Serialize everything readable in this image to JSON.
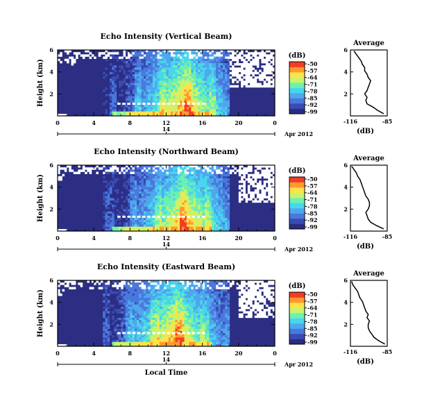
{
  "chart_data": [
    {
      "type": "heatmap",
      "title": "Echo Intensity (Vertical Beam)",
      "ylabel": "Height (km)",
      "xticks": [
        "0",
        "4",
        "8",
        "12",
        "16",
        "20",
        "0"
      ],
      "yticks": [
        "6",
        "4",
        "2"
      ],
      "date_day": "14",
      "date_label": "Apr 2012",
      "xlim": [
        0,
        24
      ],
      "ylim": [
        0,
        6
      ],
      "colorbar": {
        "unit": "(dB)",
        "ticks": [
          "-50",
          "-57",
          "-64",
          "-71",
          "-78",
          "-85",
          "-92",
          "-99"
        ],
        "range": [
          -99,
          -50
        ],
        "colors": [
          "#2b2d7e",
          "#3a4bb5",
          "#4a78dc",
          "#4fa7ee",
          "#48d6ec",
          "#6ff0b0",
          "#c8f46a",
          "#ffe24a",
          "#ff9a2c",
          "#f23d24"
        ]
      },
      "field": {
        "dense_start_h": 2,
        "peak_center_h": 14,
        "bright_band_km": 1.2,
        "sparse_after_h": 19
      },
      "profile": {
        "title": "Average",
        "xlabel": "(dB)",
        "xticks": [
          "-116",
          "-85"
        ],
        "yticks": [
          "6",
          "4",
          "2"
        ],
        "xlim": [
          -116,
          -85
        ],
        "ylim": [
          0,
          6
        ],
        "heights": [
          0.2,
          0.5,
          0.8,
          1.1,
          1.4,
          1.7,
          2.0,
          2.3,
          2.6,
          2.9,
          3.2,
          3.5,
          3.8,
          4.1,
          4.4,
          4.7,
          5.0,
          5.3,
          5.6,
          5.9
        ],
        "values": [
          -88,
          -93,
          -97,
          -102,
          -103,
          -102,
          -104,
          -102,
          -101,
          -100,
          -99,
          -101,
          -102,
          -104,
          -104,
          -106,
          -107,
          -109,
          -111,
          -113
        ]
      }
    },
    {
      "type": "heatmap",
      "title": "Echo Intensity (Northward Beam)",
      "ylabel": "Height (km)",
      "xticks": [
        "0",
        "4",
        "8",
        "12",
        "16",
        "20",
        "0"
      ],
      "yticks": [
        "6",
        "4",
        "2"
      ],
      "date_day": "14",
      "date_label": "Apr 2012",
      "xlim": [
        0,
        24
      ],
      "ylim": [
        0,
        6
      ],
      "colorbar": {
        "unit": "(dB)",
        "ticks": [
          "-50",
          "-57",
          "-64",
          "-71",
          "-78",
          "-85",
          "-92",
          "-99"
        ],
        "range": [
          -99,
          -50
        ],
        "colors": [
          "#2b2d7e",
          "#3a4bb5",
          "#4a78dc",
          "#4fa7ee",
          "#48d6ec",
          "#6ff0b0",
          "#c8f46a",
          "#ffe24a",
          "#ff9a2c",
          "#f23d24"
        ]
      },
      "field": {
        "dense_start_h": 1,
        "peak_center_h": 14,
        "bright_band_km": 1.4,
        "sparse_after_h": 20
      },
      "profile": {
        "title": "Average",
        "xlabel": "(dB)",
        "xticks": [
          "-116",
          "-85"
        ],
        "yticks": [
          "6",
          "4",
          "2"
        ],
        "xlim": [
          -116,
          -85
        ],
        "ylim": [
          0,
          6
        ],
        "heights": [
          0.2,
          0.5,
          0.8,
          1.1,
          1.4,
          1.7,
          2.0,
          2.3,
          2.6,
          2.9,
          3.2,
          3.5,
          3.8,
          4.1,
          4.4,
          4.7,
          5.0,
          5.3,
          5.6,
          5.9
        ],
        "values": [
          -88,
          -94,
          -99,
          -101,
          -102,
          -103,
          -101,
          -100,
          -100,
          -101,
          -103,
          -104,
          -105,
          -106,
          -107,
          -108,
          -110,
          -111,
          -113,
          -115
        ]
      }
    },
    {
      "type": "heatmap",
      "title": "Echo Intensity (Eastward Beam)",
      "ylabel": "Height (km)",
      "xlabel": "Local Time",
      "xticks": [
        "0",
        "4",
        "8",
        "12",
        "16",
        "20",
        "0"
      ],
      "yticks": [
        "6",
        "4",
        "2"
      ],
      "date_day": "14",
      "date_label": "Apr 2012",
      "xlim": [
        0,
        24
      ],
      "ylim": [
        0,
        6
      ],
      "colorbar": {
        "unit": "(dB)",
        "ticks": [
          "-50",
          "-57",
          "-64",
          "-71",
          "-78",
          "-85",
          "-92",
          "-99"
        ],
        "range": [
          -99,
          -50
        ],
        "colors": [
          "#2b2d7e",
          "#3a4bb5",
          "#4a78dc",
          "#4fa7ee",
          "#48d6ec",
          "#6ff0b0",
          "#c8f46a",
          "#ffe24a",
          "#ff9a2c",
          "#f23d24"
        ]
      },
      "field": {
        "dense_start_h": 1,
        "peak_center_h": 13,
        "bright_band_km": 1.3,
        "sparse_after_h": 20
      },
      "profile": {
        "title": "Average",
        "xlabel": "(dB)",
        "xticks": [
          "-116",
          "-85"
        ],
        "yticks": [
          "6",
          "4",
          "2"
        ],
        "xlim": [
          -116,
          -85
        ],
        "ylim": [
          0,
          6
        ],
        "heights": [
          0.2,
          0.5,
          0.8,
          1.1,
          1.4,
          1.7,
          2.0,
          2.3,
          2.6,
          2.9,
          3.2,
          3.5,
          3.8,
          4.1,
          4.4,
          4.7,
          5.0,
          5.3,
          5.6,
          5.9
        ],
        "values": [
          -87,
          -92,
          -96,
          -98,
          -100,
          -101,
          -101,
          -100,
          -102,
          -101,
          -103,
          -104,
          -105,
          -106,
          -108,
          -109,
          -110,
          -112,
          -114,
          -115
        ]
      }
    }
  ]
}
